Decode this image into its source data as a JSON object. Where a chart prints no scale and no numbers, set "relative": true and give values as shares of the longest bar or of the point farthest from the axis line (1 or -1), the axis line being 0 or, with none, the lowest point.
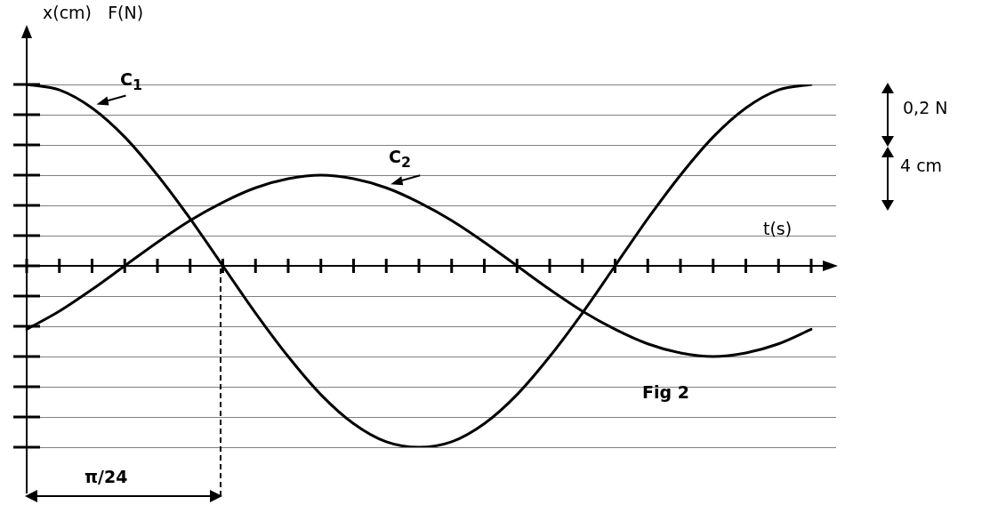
{
  "chart_data": {
    "type": "line",
    "relative": true,
    "xlabel": "t(s)",
    "ylabel": "x(cm)   F(N)",
    "grid": "y",
    "legend": false,
    "marker": "none",
    "line_style": "solid",
    "categories": [
      null,
      null,
      null,
      null,
      null,
      null,
      null,
      null,
      null,
      null,
      null,
      null,
      null,
      null,
      null,
      null,
      null,
      null,
      null,
      null,
      null,
      null,
      null,
      null,
      null
    ],
    "series": [
      {
        "name": "C$_{1}$",
        "color": "#000000",
        "values": [
          1,
          0.97,
          0.87,
          0.71,
          0.5,
          0.26,
          0,
          -0.26,
          -0.5,
          -0.71,
          -0.87,
          -0.97,
          -1,
          -0.97,
          -0.87,
          -0.71,
          -0.5,
          -0.26,
          0,
          0.26,
          0.5,
          0.71,
          0.87,
          0.97,
          1
        ]
      },
      {
        "name": "C$_{2}$",
        "color": "#000000",
        "values": [
          -0.35,
          -0.25,
          -0.13,
          0,
          0.13,
          0.25,
          0.35,
          0.43,
          0.48,
          0.5,
          0.48,
          0.43,
          0.35,
          0.25,
          0.13,
          0,
          -0.13,
          -0.25,
          -0.35,
          -0.43,
          -0.48,
          -0.5,
          -0.48,
          -0.43,
          -0.35
        ]
      }
    ],
    "annotations": [
      "0,2 N",
      "4 cm",
      "π/24",
      "Fig 2"
    ]
  }
}
